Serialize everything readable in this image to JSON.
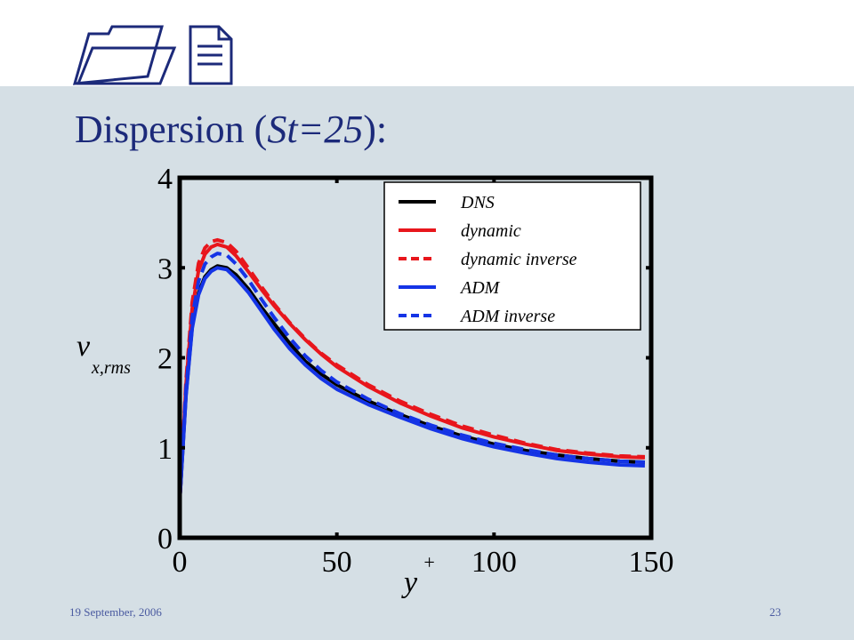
{
  "slide": {
    "title_prefix": "Dispersion (",
    "title_italic": "St=25",
    "title_suffix": "):",
    "footer_date": "19 September, 2006",
    "page_number": "23",
    "background_color": "#d5dfe5",
    "title_color": "#1c2a7a",
    "deco_icons": [
      "folder-icon",
      "document-icon"
    ]
  },
  "chart_data": {
    "type": "line",
    "title": "",
    "xlabel_main": "y",
    "xlabel_sup": "+",
    "ylabel_main": "v",
    "ylabel_sub": "x,rms",
    "xlim": [
      0,
      150
    ],
    "ylim": [
      0,
      4
    ],
    "xticks": [
      "0",
      "50",
      "100",
      "150"
    ],
    "yticks": [
      "0",
      "1",
      "2",
      "3",
      "4"
    ],
    "grid": false,
    "legend_position": "top-right",
    "series": [
      {
        "name": "DNS",
        "color": "#000000",
        "dash": "solid",
        "x": [
          0,
          2,
          4,
          6,
          8,
          10,
          12,
          15,
          18,
          22,
          26,
          30,
          35,
          40,
          45,
          50,
          60,
          70,
          80,
          90,
          100,
          110,
          120,
          130,
          140,
          148
        ],
        "y": [
          0.4,
          1.6,
          2.35,
          2.72,
          2.9,
          2.98,
          3.02,
          3.0,
          2.92,
          2.76,
          2.56,
          2.38,
          2.16,
          1.96,
          1.82,
          1.7,
          1.52,
          1.37,
          1.24,
          1.13,
          1.04,
          0.97,
          0.92,
          0.88,
          0.85,
          0.84
        ]
      },
      {
        "name": "dynamic",
        "color": "#e8161c",
        "dash": "solid",
        "x": [
          0,
          2,
          4,
          6,
          8,
          10,
          12,
          15,
          18,
          22,
          26,
          30,
          35,
          40,
          45,
          50,
          60,
          70,
          80,
          90,
          100,
          110,
          120,
          130,
          140,
          148
        ],
        "y": [
          0.4,
          1.7,
          2.55,
          2.97,
          3.15,
          3.23,
          3.26,
          3.23,
          3.13,
          2.95,
          2.76,
          2.58,
          2.38,
          2.2,
          2.04,
          1.9,
          1.68,
          1.5,
          1.35,
          1.22,
          1.12,
          1.04,
          0.97,
          0.93,
          0.9,
          0.89
        ]
      },
      {
        "name": "dynamic inverse",
        "color": "#e8161c",
        "dash": "dashed",
        "x": [
          0,
          2,
          4,
          6,
          8,
          10,
          12,
          15,
          18,
          22,
          26,
          30,
          35,
          40,
          45,
          50,
          60,
          70,
          80,
          90,
          100,
          110,
          120,
          130,
          140,
          148
        ],
        "y": [
          0.4,
          1.75,
          2.62,
          3.05,
          3.22,
          3.29,
          3.31,
          3.28,
          3.18,
          2.99,
          2.79,
          2.6,
          2.39,
          2.21,
          2.05,
          1.92,
          1.7,
          1.52,
          1.37,
          1.24,
          1.14,
          1.05,
          0.98,
          0.94,
          0.91,
          0.9
        ]
      },
      {
        "name": "ADM",
        "color": "#1534e6",
        "dash": "solid",
        "x": [
          0,
          2,
          4,
          6,
          8,
          10,
          12,
          15,
          18,
          22,
          26,
          30,
          35,
          40,
          45,
          50,
          60,
          70,
          80,
          90,
          100,
          110,
          120,
          130,
          140,
          148
        ],
        "y": [
          0.4,
          1.58,
          2.33,
          2.7,
          2.88,
          2.96,
          3.0,
          2.98,
          2.88,
          2.72,
          2.52,
          2.32,
          2.1,
          1.92,
          1.77,
          1.65,
          1.48,
          1.34,
          1.21,
          1.1,
          1.01,
          0.94,
          0.88,
          0.84,
          0.81,
          0.8
        ]
      },
      {
        "name": "ADM inverse",
        "color": "#1534e6",
        "dash": "dashed",
        "x": [
          0,
          2,
          4,
          6,
          8,
          10,
          12,
          15,
          18,
          22,
          26,
          30,
          35,
          40,
          45,
          50,
          60,
          70,
          80,
          90,
          100,
          110,
          120,
          130,
          140,
          148
        ],
        "y": [
          0.4,
          1.65,
          2.45,
          2.85,
          3.04,
          3.12,
          3.16,
          3.14,
          3.04,
          2.86,
          2.65,
          2.45,
          2.22,
          2.02,
          1.86,
          1.73,
          1.54,
          1.38,
          1.25,
          1.14,
          1.05,
          0.98,
          0.92,
          0.88,
          0.85,
          0.84
        ]
      }
    ]
  }
}
